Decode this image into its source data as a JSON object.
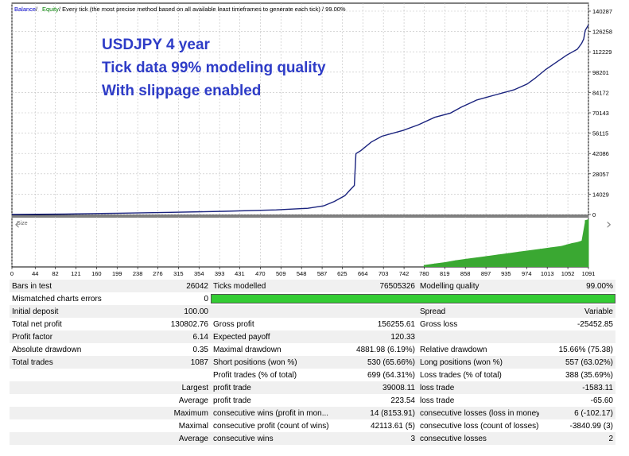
{
  "chart_header": {
    "balance": "Balance",
    "sep1": " / ",
    "equity": "Equity",
    "description": " / Every tick (the most precise method based on all available least timeframes to generate each tick)  /  99.00%"
  },
  "annotation": {
    "line1": "USDJPY 4 year",
    "line2": "Tick data 99% modeling quality",
    "line3": "With slippage enabled"
  },
  "volume_label": "Size",
  "colors": {
    "balance_line": "#1a237e",
    "volume_bars": "#3aa832",
    "annotation": "#2e3cc7",
    "quality_bar": "#33cc33"
  },
  "nav": {
    "right_arrow": "chevron-right-icon"
  },
  "chart_data": [
    {
      "type": "line",
      "title": "",
      "xlabel": "",
      "ylabel": "",
      "x_ticks": [
        "0",
        "44",
        "82",
        "121",
        "160",
        "199",
        "238",
        "276",
        "315",
        "354",
        "393",
        "431",
        "470",
        "509",
        "548",
        "587",
        "625",
        "664",
        "703",
        "742",
        "780",
        "819",
        "858",
        "897",
        "935",
        "974",
        "1013",
        "1052",
        "1091"
      ],
      "y_ticks": [
        "140287",
        "126258",
        "112229",
        "98201",
        "84172",
        "70143",
        "56115",
        "42086",
        "28057",
        "14029",
        "0"
      ],
      "ylim": [
        0,
        140287
      ],
      "xlim": [
        0,
        1091
      ],
      "grid": true,
      "series": [
        {
          "name": "Balance",
          "x": [
            0,
            100,
            200,
            300,
            400,
            500,
            560,
            590,
            610,
            630,
            640,
            648,
            651,
            660,
            680,
            700,
            740,
            770,
            800,
            830,
            850,
            880,
            920,
            950,
            975,
            990,
            1010,
            1030,
            1050,
            1070,
            1078,
            1082,
            1085,
            1091
          ],
          "y": [
            0,
            300,
            900,
            1500,
            2200,
            3200,
            4300,
            6000,
            9000,
            13000,
            17000,
            20000,
            42000,
            44000,
            50000,
            54000,
            58000,
            62000,
            67000,
            70000,
            74000,
            79000,
            83000,
            86000,
            90000,
            94000,
            100000,
            105000,
            110000,
            114000,
            118000,
            121000,
            127000,
            130800
          ]
        }
      ]
    },
    {
      "type": "bar",
      "title": "",
      "xlabel": "",
      "ylabel": "",
      "series_label": "Size",
      "x": [
        780,
        800,
        820,
        840,
        860,
        880,
        900,
        920,
        940,
        960,
        980,
        1000,
        1020,
        1040,
        1050,
        1060,
        1070,
        1078,
        1085,
        1091
      ],
      "values": [
        4,
        7,
        10,
        14,
        17,
        20,
        23,
        26,
        29,
        32,
        35,
        38,
        41,
        44,
        47,
        50,
        52,
        55,
        98,
        100
      ],
      "ylim": [
        0,
        100
      ]
    }
  ],
  "report": {
    "rows": [
      [
        "Bars in test",
        "26042",
        "Ticks modelled",
        "76505326",
        "Modelling quality",
        "99.00%"
      ],
      [
        "Mismatched charts errors",
        "0",
        "",
        "",
        "",
        ""
      ],
      [
        "Initial deposit",
        "100.00",
        "",
        "",
        "Spread",
        "Variable"
      ],
      [
        "Total net profit",
        "130802.76",
        "Gross profit",
        "156255.61",
        "Gross loss",
        "-25452.85"
      ],
      [
        "Profit factor",
        "6.14",
        "Expected payoff",
        "120.33",
        "",
        ""
      ],
      [
        "Absolute drawdown",
        "0.35",
        "Maximal drawdown",
        "4881.98 (6.19%)",
        "Relative drawdown",
        "15.66% (75.38)"
      ],
      [
        "Total trades",
        "1087",
        "Short positions (won %)",
        "530 (65.66%)",
        "Long positions (won %)",
        "557 (63.02%)"
      ],
      [
        "",
        "",
        "Profit trades (% of total)",
        "699 (64.31%)",
        "Loss trades (% of total)",
        "388 (35.69%)"
      ],
      [
        "",
        "Largest",
        "profit trade",
        "39008.11",
        "loss trade",
        "-1583.11"
      ],
      [
        "",
        "Average",
        "profit trade",
        "223.54",
        "loss trade",
        "-65.60"
      ],
      [
        "",
        "Maximum",
        "consecutive wins (profit in mon...",
        "14 (8153.91)",
        "consecutive losses (loss in money)",
        "6 (-102.17)"
      ],
      [
        "",
        "Maximal",
        "consecutive profit (count of wins)",
        "42113.61 (5)",
        "consecutive loss (count of losses)",
        "-3840.99 (3)"
      ],
      [
        "",
        "Average",
        "consecutive wins",
        "3",
        "consecutive losses",
        "2"
      ]
    ],
    "quality_bar_fraction": 0.99
  }
}
